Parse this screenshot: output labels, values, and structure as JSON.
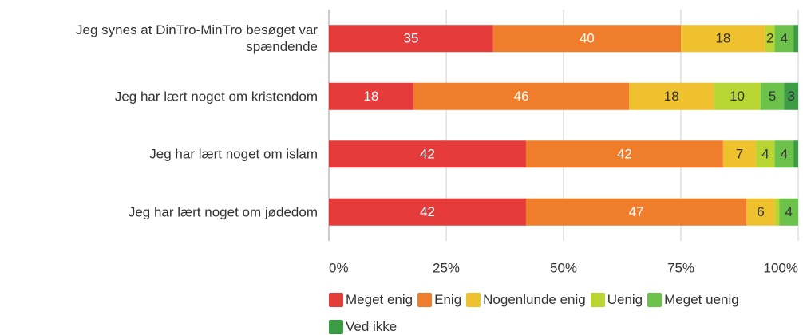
{
  "chart_data": {
    "type": "stacked-bar-horizontal",
    "categories": [
      "Jeg synes at DinTro-MinTro besøget var\nspændende",
      "Jeg har lært noget om kristendom",
      "Jeg har lært noget om islam",
      "Jeg har lært noget om jødedom"
    ],
    "series": [
      {
        "name": "Meget enig",
        "color": "#e63b3b",
        "label_color": "#ffffff",
        "values": [
          35,
          18,
          42,
          42
        ]
      },
      {
        "name": "Enig",
        "color": "#f07d2c",
        "label_color": "#ffffff",
        "values": [
          40,
          46,
          42,
          47
        ]
      },
      {
        "name": "Nogenlunde enig",
        "color": "#efc12e",
        "label_color": "#333333",
        "values": [
          18,
          18,
          7,
          6
        ]
      },
      {
        "name": "Uenig",
        "color": "#b9d534",
        "label_color": "#333333",
        "values": [
          2,
          10,
          4,
          1
        ]
      },
      {
        "name": "Meget uenig",
        "color": "#6cc24a",
        "label_color": "#333333",
        "values": [
          4,
          5,
          4,
          4
        ]
      },
      {
        "name": "Ved ikke",
        "color": "#3c9c46",
        "label_color": "#333333",
        "values": [
          1,
          3,
          1,
          0
        ]
      }
    ],
    "xlim": [
      0,
      100
    ],
    "xticks": [
      {
        "value": 0,
        "label": "0%"
      },
      {
        "value": 25,
        "label": "25%"
      },
      {
        "value": 50,
        "label": "50%"
      },
      {
        "value": 75,
        "label": "75%"
      },
      {
        "value": 100,
        "label": "100%"
      }
    ],
    "grid": true
  }
}
